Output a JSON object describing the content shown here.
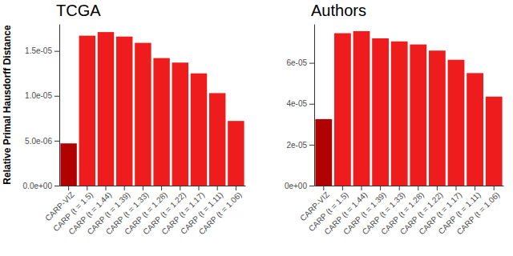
{
  "chart_data": [
    {
      "type": "bar",
      "title": "TCGA",
      "y_label": "Relative Primal Hausdorff Distance",
      "categories": [
        "CARP-VIZ",
        "CARP (t = 1.5)",
        "CARP (t = 1.44)",
        "CARP (t = 1.39)",
        "CARP (t = 1.33)",
        "CARP (t = 1.28)",
        "CARP (t = 1.22)",
        "CARP (t = 1.17)",
        "CARP (t = 1.11)",
        "CARP (t = 1.06)"
      ],
      "values": [
        4.7e-06,
        1.67e-05,
        1.71e-05,
        1.66e-05,
        1.59e-05,
        1.42e-05,
        1.37e-05,
        1.25e-05,
        1.03e-05,
        7.2e-06
      ],
      "colors": [
        "#b00000",
        "#ee1c1c",
        "#ee1c1c",
        "#ee1c1c",
        "#ee1c1c",
        "#ee1c1c",
        "#ee1c1c",
        "#ee1c1c",
        "#ee1c1c",
        "#ee1c1c"
      ],
      "ylim": [
        0,
        1.8e-05
      ],
      "yticks": [
        {
          "value": 0,
          "label": "0.0e+00"
        },
        {
          "value": 5e-06,
          "label": "5.0e-06"
        },
        {
          "value": 1e-05,
          "label": "1.0e-05"
        },
        {
          "value": 1.5e-05,
          "label": "1.5e-05"
        }
      ],
      "grid": false
    },
    {
      "type": "bar",
      "title": "Authors",
      "categories": [
        "CARP-VIZ",
        "CARP (t = 1.5)",
        "CARP (t = 1.44)",
        "CARP (t = 1.39)",
        "CARP (t = 1.33)",
        "CARP (t = 1.28)",
        "CARP (t = 1.22)",
        "CARP (t = 1.17)",
        "CARP (t = 1.11)",
        "CARP (t = 1.06)"
      ],
      "values": [
        3.25e-05,
        7.45e-05,
        7.55e-05,
        7.2e-05,
        7.05e-05,
        6.9e-05,
        6.6e-05,
        6.15e-05,
        5.5e-05,
        4.35e-05
      ],
      "colors": [
        "#b00000",
        "#ee1c1c",
        "#ee1c1c",
        "#ee1c1c",
        "#ee1c1c",
        "#ee1c1c",
        "#ee1c1c",
        "#ee1c1c",
        "#ee1c1c",
        "#ee1c1c"
      ],
      "ylim": [
        0,
        7.9e-05
      ],
      "yticks": [
        {
          "value": 0,
          "label": "0e+00"
        },
        {
          "value": 2e-05,
          "label": "2e-05"
        },
        {
          "value": 4e-05,
          "label": "4e-05"
        },
        {
          "value": 6e-05,
          "label": "6e-05"
        }
      ],
      "grid": false
    }
  ]
}
